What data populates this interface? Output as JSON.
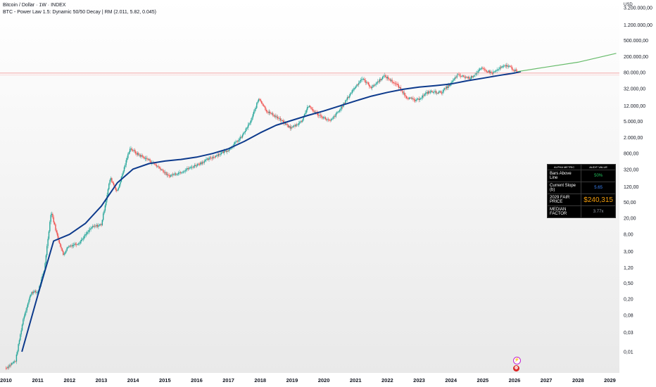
{
  "chart_title": "Bitcoin / Dollar · 1W · INDEX",
  "indicator_legend": "BTC - Power Law 1.5: Dynamic 50/50 Decay | RM (2.011, 5.82, 0.045)",
  "price_currency": "USD",
  "price_scale_labels": [
    "3.200.000,00",
    "1.200.000,00",
    "500.000,00",
    "200.000,00",
    "80.000,00",
    "32.000,00",
    "12.000,00",
    "5.000,00",
    "2.000,00",
    "800,00",
    "320,00",
    "120,00",
    "50,00",
    "20,00",
    "8,00",
    "3,00",
    "1,20",
    "0,50",
    "0,20",
    "0,08",
    "0,03",
    "0,01"
  ],
  "year_labels": [
    "2010",
    "2011",
    "2012",
    "2013",
    "2014",
    "2015",
    "2016",
    "2017",
    "2018",
    "2019",
    "2020",
    "2021",
    "2022",
    "2023",
    "2024",
    "2025",
    "2026",
    "2027",
    "2028",
    "2029"
  ],
  "metrics_table": {
    "header_metric": "ALPHA METRIC",
    "header_value": "AUDIT VALUE",
    "rows": [
      {
        "label": "Bars Above Line",
        "value": "50%",
        "color": "#22c55e"
      },
      {
        "label": "Current Slope (b)",
        "value": "5.65",
        "color": "#3b82f6"
      },
      {
        "label": "2029 FAIR PRICE",
        "value": "$240,315",
        "color": "#f59e0b"
      },
      {
        "label": "MEDIAN FACTOR",
        "value": "3.77x",
        "color": "#9ca3af"
      }
    ]
  },
  "event_markers": [
    {
      "icon": "lightning-icon",
      "glyph": "⚡",
      "color": "#c026d3"
    },
    {
      "icon": "us-flag-icon",
      "glyph": "◍",
      "color": "#dc2626"
    }
  ],
  "chart_data": {
    "type": "line",
    "title": "Bitcoin / Dollar · 1W · INDEX",
    "xlabel": "",
    "ylabel": "USD",
    "log_scale": true,
    "xlim": [
      2009.9,
      2029.3
    ],
    "ylim": [
      0.003,
      5000000
    ],
    "grid": false,
    "current_price_line": 78000,
    "series": [
      {
        "name": "price",
        "color": "#26a69a",
        "x": [
          2010.0,
          2010.3,
          2010.55,
          2010.8,
          2011.0,
          2011.2,
          2011.42,
          2011.6,
          2011.8,
          2011.95,
          2012.3,
          2012.7,
          2013.0,
          2013.28,
          2013.5,
          2013.9,
          2014.1,
          2014.5,
          2014.9,
          2015.1,
          2015.5,
          2016.0,
          2016.5,
          2017.0,
          2017.4,
          2017.7,
          2017.96,
          2018.2,
          2018.5,
          2018.96,
          2019.3,
          2019.5,
          2019.8,
          2020.2,
          2020.5,
          2020.9,
          2021.2,
          2021.5,
          2021.9,
          2022.3,
          2022.6,
          2022.9,
          2023.3,
          2023.7,
          2024.0,
          2024.2,
          2024.6,
          2024.95,
          2025.3,
          2025.6,
          2025.8,
          2026.0,
          2026.1
        ],
        "y": [
          0.004,
          0.006,
          0.07,
          0.3,
          0.3,
          1.0,
          30.0,
          8.0,
          2.5,
          4.0,
          5.0,
          12.0,
          14.0,
          200.0,
          90.0,
          1100.0,
          800.0,
          550.0,
          320.0,
          220.0,
          280.0,
          420.0,
          650.0,
          1000.0,
          2000.0,
          5000.0,
          19000.0,
          9000.0,
          6500.0,
          3400.0,
          5000.0,
          12000.0,
          7500.0,
          5000.0,
          9500.0,
          29000.0,
          58000.0,
          34000.0,
          67000.0,
          40000.0,
          20000.0,
          16000.0,
          27000.0,
          26000.0,
          43000.0,
          70000.0,
          58000.0,
          100000.0,
          78000.0,
          109000.0,
          120000.0,
          90000.0,
          85000.0
        ]
      },
      {
        "name": "power-law",
        "color": "#0d3a8c",
        "x": [
          2010.5,
          2011.0,
          2011.5,
          2012.0,
          2012.5,
          2013.0,
          2013.5,
          2014.0,
          2014.5,
          2015.0,
          2015.5,
          2016.0,
          2016.5,
          2017.0,
          2017.5,
          2018.0,
          2018.5,
          2019.0,
          2019.5,
          2020.0,
          2020.5,
          2021.0,
          2021.5,
          2022.0,
          2022.5,
          2023.0,
          2023.5,
          2024.0,
          2024.5,
          2025.0,
          2025.5,
          2026.0,
          2026.2
        ],
        "y": [
          0.01,
          0.25,
          5.5,
          8.0,
          15.0,
          40.0,
          150.0,
          330.0,
          450.0,
          520.0,
          570.0,
          650.0,
          800.0,
          1050.0,
          1600.0,
          2600.0,
          4000.0,
          5300.0,
          7000.0,
          9000.0,
          12000.0,
          16000.0,
          21000.0,
          26000.0,
          31000.0,
          35000.0,
          38000.0,
          42000.0,
          50000.0,
          58000.0,
          68000.0,
          78000.0,
          85000.0
        ]
      },
      {
        "name": "projection",
        "color": "#66bb6a",
        "x": [
          2026.1,
          2027.0,
          2028.0,
          2029.2
        ],
        "y": [
          85000.0,
          110000.0,
          145000.0,
          240000.0
        ]
      }
    ]
  }
}
